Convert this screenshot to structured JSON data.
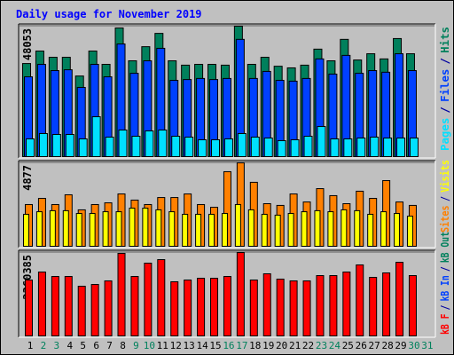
{
  "title": "Daily usage for November 2019",
  "legend_separator": "/",
  "chart_data": [
    {
      "type": "bar",
      "ylim": [
        0,
        48053
      ],
      "yticks": [
        48053
      ],
      "series": [
        {
          "name": "Hits",
          "color": "#00805C",
          "values": [
            34300,
            38900,
            36600,
            36600,
            29700,
            38900,
            34000,
            47400,
            35300,
            40500,
            45400,
            35300,
            33700,
            34000,
            34000,
            33700,
            48053,
            34000,
            36600,
            33300,
            32700,
            33700,
            39600,
            35300,
            43200,
            35600,
            37900,
            36000,
            43500,
            37900,
            null
          ]
        },
        {
          "name": "Files",
          "color": "#0040FF",
          "values": [
            29400,
            34000,
            31700,
            32000,
            25500,
            34000,
            29400,
            41500,
            30700,
            35300,
            39900,
            28100,
            28400,
            28800,
            28400,
            28800,
            43200,
            28800,
            31400,
            28100,
            27800,
            28800,
            36000,
            30400,
            37300,
            30700,
            31700,
            31100,
            37900,
            31700,
            null
          ]
        },
        {
          "name": "Pages",
          "color": "#00E0FF",
          "values": [
            6540,
            8500,
            8170,
            8170,
            6540,
            14700,
            7190,
            9810,
            7520,
            9480,
            9810,
            7520,
            7190,
            6210,
            6210,
            6540,
            8500,
            7190,
            6860,
            5880,
            6210,
            7520,
            11100,
            6540,
            6540,
            6860,
            7190,
            6860,
            6860,
            6860,
            null
          ]
        }
      ]
    },
    {
      "type": "bar",
      "ylim": [
        0,
        4877
      ],
      "yticks": [
        4877
      ],
      "series": [
        {
          "name": "Visits",
          "color": "#FFFF00",
          "values": [
            1870,
            2020,
            2080,
            2080,
            1920,
            1920,
            2020,
            2020,
            2230,
            2230,
            2130,
            2020,
            1870,
            1870,
            1870,
            1920,
            2440,
            2130,
            1870,
            1820,
            1920,
            2020,
            2080,
            2020,
            2130,
            2080,
            1870,
            2020,
            1920,
            1760,
            null
          ]
        },
        {
          "name": "Sites",
          "color": "#FF8000",
          "values": [
            2440,
            2800,
            2440,
            3010,
            2130,
            2440,
            2540,
            3060,
            2700,
            2440,
            2850,
            2850,
            3060,
            2440,
            2280,
            4360,
            4877,
            3740,
            2490,
            2390,
            3060,
            2590,
            3370,
            2960,
            2490,
            3220,
            2800,
            3840,
            2590,
            2390,
            null
          ]
        }
      ]
    },
    {
      "type": "bar",
      "ylim": [
        0,
        2360385
      ],
      "yticks": [
        2360385
      ],
      "categories": [
        "1",
        "2",
        "3",
        "4",
        "5",
        "6",
        "7",
        "8",
        "9",
        "10",
        "11",
        "12",
        "13",
        "14",
        "15",
        "16",
        "17",
        "18",
        "19",
        "20",
        "21",
        "22",
        "23",
        "24",
        "25",
        "26",
        "27",
        "28",
        "29",
        "30",
        "31"
      ],
      "category_colors": [
        "#000000",
        "#00805C",
        "#00805C",
        "#000000",
        "#000000",
        "#000000",
        "#000000",
        "#000000",
        "#00805C",
        "#00805C",
        "#000000",
        "#000000",
        "#000000",
        "#000000",
        "#000000",
        "#00805C",
        "#00805C",
        "#000000",
        "#000000",
        "#000000",
        "#000000",
        "#000000",
        "#00805C",
        "#00805C",
        "#000000",
        "#000000",
        "#000000",
        "#000000",
        "#000000",
        "#00805C",
        "#00805C"
      ],
      "series": [
        {
          "name": "kB Out",
          "color": "#00805C",
          "values": [
            null,
            null,
            null,
            null,
            null,
            null,
            null,
            null,
            null,
            null,
            null,
            null,
            null,
            null,
            null,
            null,
            null,
            null,
            null,
            null,
            null,
            null,
            null,
            null,
            null,
            null,
            null,
            null,
            null,
            null,
            null
          ]
        },
        {
          "name": "kB In",
          "color": "#0040FF",
          "values": [
            null,
            null,
            null,
            null,
            null,
            null,
            null,
            null,
            null,
            null,
            null,
            null,
            null,
            null,
            null,
            null,
            null,
            null,
            null,
            null,
            null,
            null,
            null,
            null,
            null,
            null,
            null,
            null,
            null,
            null,
            null
          ]
        },
        {
          "name": "kB F",
          "color": "#FF0000",
          "values": [
            1582000,
            1808000,
            1682000,
            1682000,
            1406000,
            1456000,
            1557000,
            2335000,
            1682000,
            2059000,
            2159000,
            1532000,
            1582000,
            1632000,
            1632000,
            1682000,
            2360385,
            1582000,
            1758000,
            1607000,
            1557000,
            1557000,
            1707000,
            1707000,
            1808000,
            2009000,
            1657000,
            1783000,
            2084000,
            1707000,
            null
          ]
        }
      ]
    }
  ]
}
